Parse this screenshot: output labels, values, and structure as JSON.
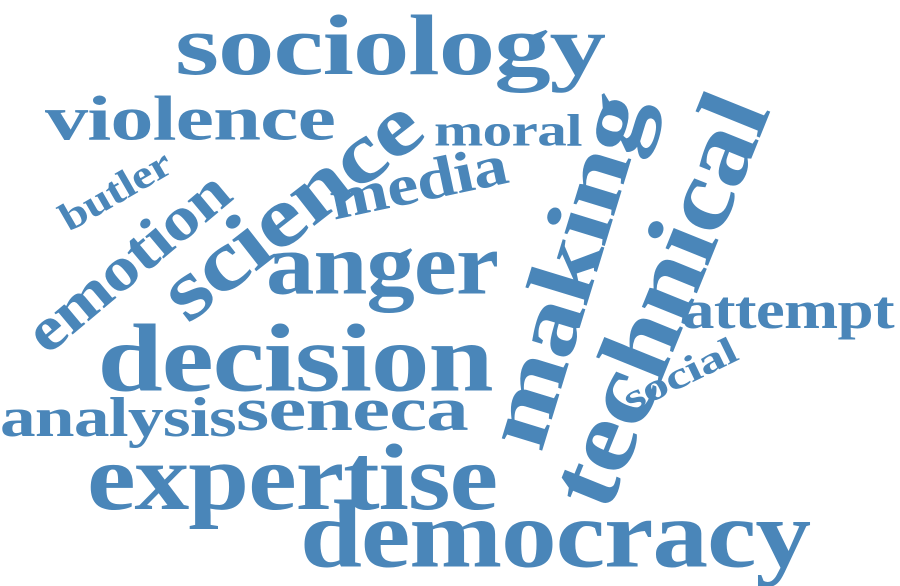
{
  "color": "#4a86b9",
  "words": [
    {
      "id": "sociology",
      "text": "sociology"
    },
    {
      "id": "violence",
      "text": "violence"
    },
    {
      "id": "moral",
      "text": "moral"
    },
    {
      "id": "science",
      "text": "science"
    },
    {
      "id": "butler",
      "text": "butler"
    },
    {
      "id": "emotion",
      "text": "emotion"
    },
    {
      "id": "media",
      "text": "media"
    },
    {
      "id": "making",
      "text": "making"
    },
    {
      "id": "technical",
      "text": "technical"
    },
    {
      "id": "anger",
      "text": "anger"
    },
    {
      "id": "attempt",
      "text": "attempt"
    },
    {
      "id": "decision",
      "text": "decision"
    },
    {
      "id": "social",
      "text": "social"
    },
    {
      "id": "analysis",
      "text": "analysis"
    },
    {
      "id": "seneca",
      "text": "seneca"
    },
    {
      "id": "expertise",
      "text": "expertise"
    },
    {
      "id": "democracy",
      "text": "democracy"
    }
  ]
}
